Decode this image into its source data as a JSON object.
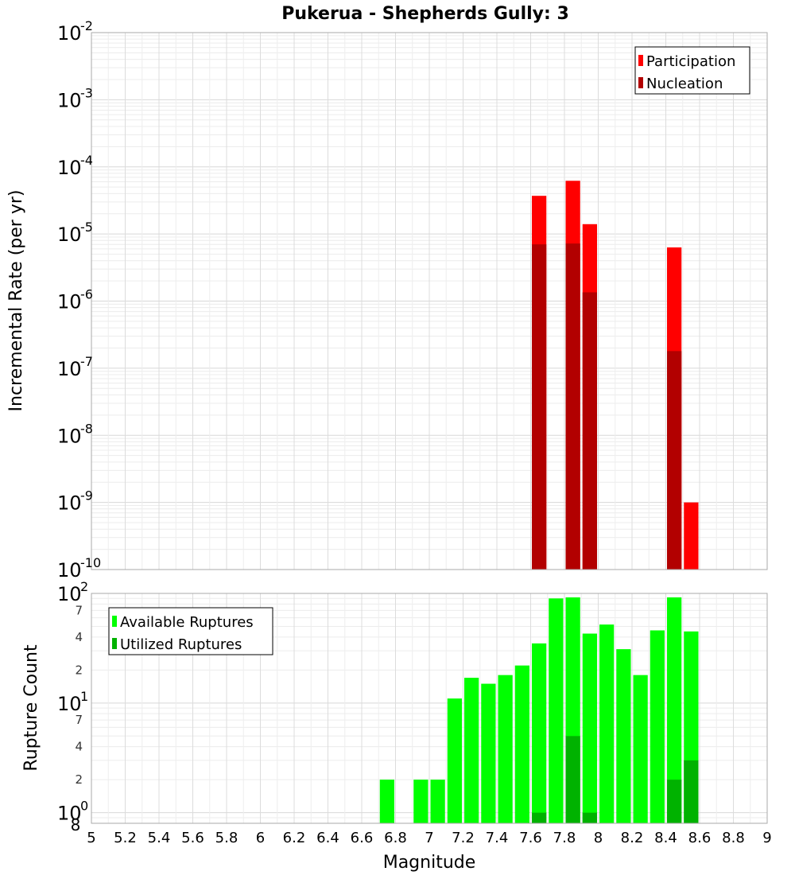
{
  "chart_data": {
    "type": "bar",
    "title": "Pukerua - Shepherds Gully: 3",
    "xlabel": "Magnitude",
    "xlim": [
      5,
      9
    ],
    "xticks": [
      "5",
      "5.2",
      "5.4",
      "5.6",
      "5.8",
      "6",
      "6.2",
      "6.4",
      "6.6",
      "6.8",
      "7",
      "7.2",
      "7.4",
      "7.6",
      "7.8",
      "8",
      "8.2",
      "8.4",
      "8.6",
      "8.8",
      "9"
    ],
    "bin_width": 0.1,
    "grid": true,
    "panels": [
      {
        "ylabel": "Incremental Rate (per yr)",
        "yscale": "log",
        "ylim": [
          1e-10,
          0.01
        ],
        "ytick_exponents": [
          "-10",
          "-9",
          "-8",
          "-7",
          "-6",
          "-5",
          "-4",
          "-3",
          "-2"
        ],
        "legend_position": "top-right",
        "colors": {
          "Participation": "#ff0000",
          "Nucleation": "#b20000"
        },
        "series": [
          {
            "name": "Participation",
            "x": [
              7.65,
              7.85,
              7.95,
              8.45,
              8.55
            ],
            "values": [
              3.7e-05,
              6.2e-05,
              1.4e-05,
              6.3e-06,
              1e-09
            ]
          },
          {
            "name": "Nucleation",
            "x": [
              7.65,
              7.85,
              7.95,
              8.45
            ],
            "values": [
              7e-06,
              7.2e-06,
              1.35e-06,
              1.8e-07
            ]
          }
        ]
      },
      {
        "ylabel": "Rupture Count",
        "yscale": "log",
        "ylim": [
          0.8,
          100
        ],
        "ytick_exponents": [
          "0",
          "1",
          "2"
        ],
        "minor_tick_labels": [
          "2",
          "4",
          "7",
          "2",
          "4",
          "7"
        ],
        "minor_tick_values": [
          2,
          4,
          7,
          20,
          40,
          70
        ],
        "bottom_label": "8",
        "legend_position": "top-left",
        "colors": {
          "Available Ruptures": "#00ff00",
          "Utilized Ruptures": "#00b200"
        },
        "series": [
          {
            "name": "Available Ruptures",
            "x": [
              6.75,
              6.95,
              7.05,
              7.15,
              7.25,
              7.35,
              7.45,
              7.55,
              7.65,
              7.75,
              7.85,
              7.95,
              8.05,
              8.15,
              8.25,
              8.35,
              8.45,
              8.55
            ],
            "values": [
              2,
              2,
              2,
              11,
              17,
              15,
              18,
              22,
              35,
              90,
              92,
              43,
              52,
              31,
              18,
              46,
              92,
              45
            ]
          },
          {
            "name": "Utilized Ruptures",
            "x": [
              7.65,
              7.85,
              7.95,
              8.45,
              8.55
            ],
            "values": [
              1,
              5,
              1,
              2,
              3
            ]
          }
        ]
      }
    ]
  }
}
